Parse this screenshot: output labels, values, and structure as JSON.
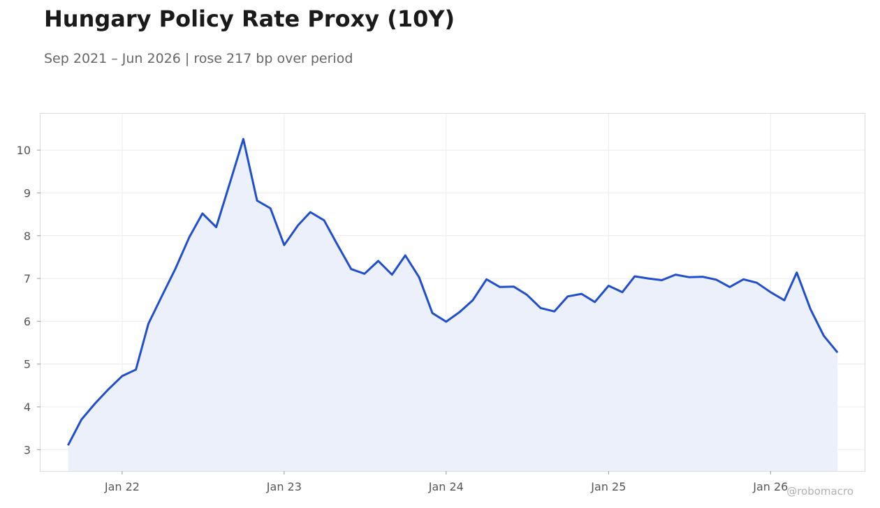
{
  "title": "Hungary Policy Rate Proxy (10Y)",
  "subtitle": "Sep 2021 – Jun 2026 | rose 217 bp over period",
  "watermark": "@robomacro",
  "colors": {
    "line": "#1f4fcf",
    "fill": "#ecf0fb",
    "grid": "#ececec",
    "frame": "#dddddd"
  },
  "chart_data": {
    "type": "area",
    "xlim": [
      "2021-07-01",
      "2026-08-01"
    ],
    "ylim": [
      2.5,
      10.85
    ],
    "grid": true,
    "yticks": [
      3,
      4,
      5,
      6,
      7,
      8,
      9,
      10
    ],
    "xticks": [
      {
        "date": "2022-01-01",
        "label": "Jan 22"
      },
      {
        "date": "2023-01-01",
        "label": "Jan 23"
      },
      {
        "date": "2024-01-01",
        "label": "Jan 24"
      },
      {
        "date": "2025-01-01",
        "label": "Jan 25"
      },
      {
        "date": "2026-01-01",
        "label": "Jan 26"
      }
    ],
    "series": [
      {
        "x": [
          "2021-09",
          "2021-10",
          "2021-11",
          "2021-12",
          "2022-01",
          "2022-02",
          "2022-03",
          "2022-04",
          "2022-05",
          "2022-06",
          "2022-07",
          "2022-08",
          "2022-09",
          "2022-10",
          "2022-11",
          "2022-12",
          "2023-01",
          "2023-02",
          "2023-03",
          "2023-04",
          "2023-05",
          "2023-06",
          "2023-07",
          "2023-08",
          "2023-09",
          "2023-10",
          "2023-11",
          "2023-12",
          "2024-01",
          "2024-02",
          "2024-03",
          "2024-04",
          "2024-05",
          "2024-06",
          "2024-07",
          "2024-08",
          "2024-09",
          "2024-10",
          "2024-11",
          "2024-12",
          "2025-01",
          "2025-02",
          "2025-03",
          "2025-04",
          "2025-05",
          "2025-06",
          "2025-07",
          "2025-08",
          "2025-09",
          "2025-10",
          "2025-11",
          "2025-12",
          "2026-01",
          "2026-02",
          "2026-03",
          "2026-04",
          "2026-05",
          "2026-06"
        ],
        "values": [
          3.1,
          3.7,
          4.08,
          4.41,
          4.72,
          4.87,
          5.94,
          6.6,
          7.23,
          7.96,
          8.52,
          8.2,
          9.24,
          10.26,
          8.82,
          8.64,
          7.78,
          8.24,
          8.55,
          8.36,
          7.79,
          7.22,
          7.11,
          7.41,
          7.09,
          7.54,
          7.03,
          6.19,
          5.99,
          6.22,
          6.49,
          6.98,
          6.8,
          6.81,
          6.62,
          6.31,
          6.23,
          6.58,
          6.64,
          6.45,
          6.83,
          6.68,
          7.05,
          7.0,
          6.96,
          7.09,
          7.03,
          7.04,
          6.97,
          6.8,
          6.98,
          6.9,
          6.68,
          6.49,
          7.14,
          6.28,
          5.66,
          5.27
        ]
      }
    ]
  }
}
